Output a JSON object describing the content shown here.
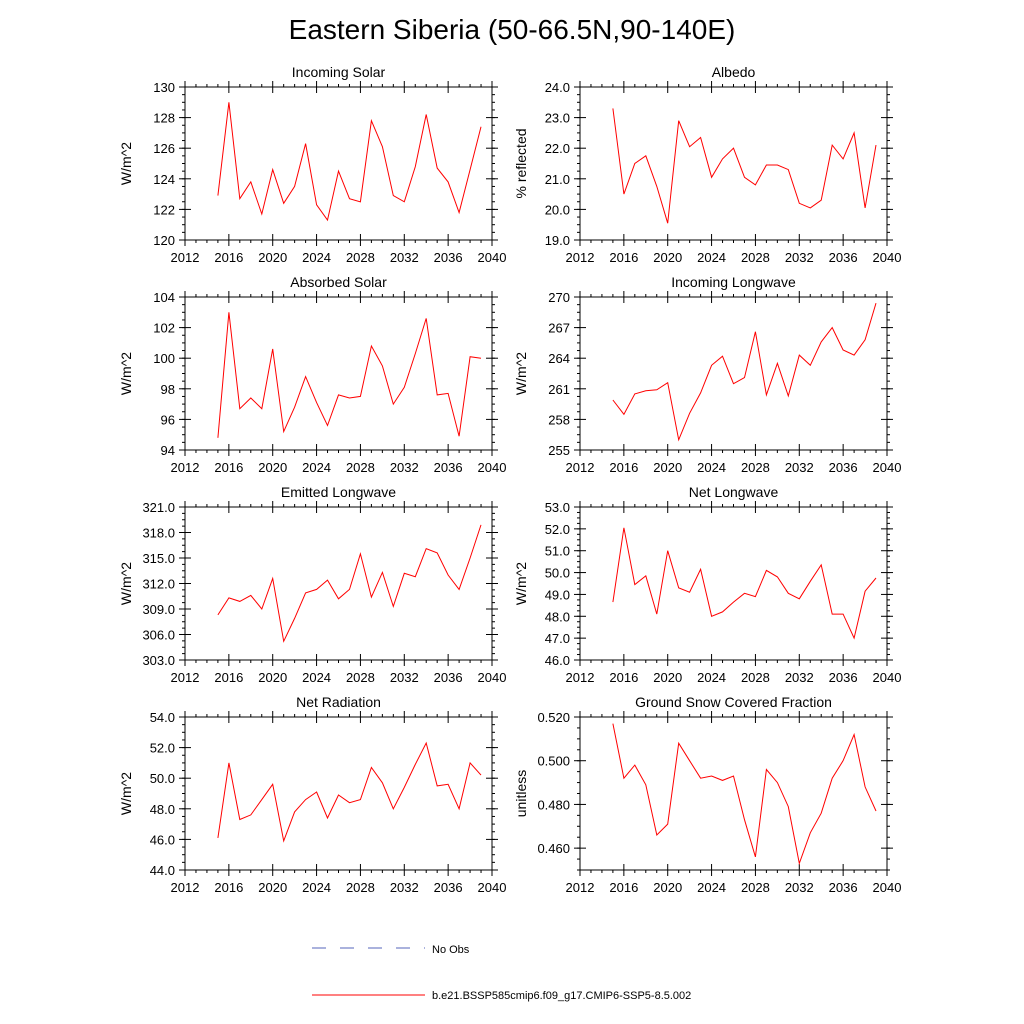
{
  "title": "Eastern Siberia (50-66.5N,90-140E)",
  "colors": {
    "model": "#ff0000",
    "obs": "#5566bb",
    "axis": "#000000"
  },
  "legend": {
    "obs_label": "No Obs",
    "model_label": "b.e21.BSSP585cmip6.f09_g17.CMIP6-SSP5-8.5.002"
  },
  "chart_data": [
    {
      "type": "line",
      "title": "Incoming Solar",
      "ylabel": "W/m^2",
      "xlim": [
        2012,
        2040
      ],
      "ylim": [
        120,
        130
      ],
      "xticks": [
        2012,
        2016,
        2020,
        2024,
        2028,
        2032,
        2036,
        2040
      ],
      "yticks": [
        120,
        122,
        124,
        126,
        128,
        130
      ],
      "ytick_labels": [
        "120",
        "122",
        "124",
        "126",
        "128",
        "130"
      ],
      "x": [
        2015,
        2016,
        2017,
        2018,
        2019,
        2020,
        2021,
        2022,
        2023,
        2024,
        2025,
        2026,
        2027,
        2028,
        2029,
        2030,
        2031,
        2032,
        2033,
        2034,
        2035,
        2036,
        2037,
        2038,
        2039
      ],
      "series": [
        {
          "values": [
            122.9,
            129.0,
            122.7,
            123.8,
            121.7,
            124.6,
            122.4,
            123.5,
            126.3,
            122.3,
            121.3,
            124.5,
            122.7,
            122.5,
            127.8,
            126.1,
            122.9,
            122.5,
            124.8,
            128.2,
            124.7,
            123.8,
            121.8,
            124.6,
            127.4
          ]
        }
      ]
    },
    {
      "type": "line",
      "title": "Albedo",
      "ylabel": "% reflected",
      "xlim": [
        2012,
        2040
      ],
      "ylim": [
        19,
        24
      ],
      "xticks": [
        2012,
        2016,
        2020,
        2024,
        2028,
        2032,
        2036,
        2040
      ],
      "yticks": [
        19,
        20,
        21,
        22,
        23,
        24
      ],
      "ytick_labels": [
        "19.0",
        "20.0",
        "21.0",
        "22.0",
        "23.0",
        "24.0"
      ],
      "x": [
        2015,
        2016,
        2017,
        2018,
        2019,
        2020,
        2021,
        2022,
        2023,
        2024,
        2025,
        2026,
        2027,
        2028,
        2029,
        2030,
        2031,
        2032,
        2033,
        2034,
        2035,
        2036,
        2037,
        2038,
        2039
      ],
      "series": [
        {
          "values": [
            23.3,
            20.5,
            21.5,
            21.75,
            20.75,
            19.55,
            22.9,
            22.05,
            22.35,
            21.05,
            21.65,
            22.0,
            21.05,
            20.8,
            21.45,
            21.45,
            21.3,
            20.2,
            20.05,
            20.3,
            22.1,
            21.65,
            22.5,
            20.05,
            22.1
          ]
        }
      ]
    },
    {
      "type": "line",
      "title": "Absorbed Solar",
      "ylabel": "W/m^2",
      "xlim": [
        2012,
        2040
      ],
      "ylim": [
        94,
        104
      ],
      "xticks": [
        2012,
        2016,
        2020,
        2024,
        2028,
        2032,
        2036,
        2040
      ],
      "yticks": [
        94,
        96,
        98,
        100,
        102,
        104
      ],
      "ytick_labels": [
        "94",
        "96",
        "98",
        "100",
        "102",
        "104"
      ],
      "x": [
        2015,
        2016,
        2017,
        2018,
        2019,
        2020,
        2021,
        2022,
        2023,
        2024,
        2025,
        2026,
        2027,
        2028,
        2029,
        2030,
        2031,
        2032,
        2033,
        2034,
        2035,
        2036,
        2037,
        2038,
        2039
      ],
      "series": [
        {
          "values": [
            94.8,
            103.0,
            96.7,
            97.4,
            96.7,
            100.6,
            95.2,
            96.8,
            98.8,
            97.1,
            95.6,
            97.6,
            97.4,
            97.5,
            100.8,
            99.5,
            97.0,
            98.1,
            100.3,
            102.6,
            97.6,
            97.7,
            94.9,
            100.1,
            100.0
          ]
        }
      ]
    },
    {
      "type": "line",
      "title": "Incoming Longwave",
      "ylabel": "W/m^2",
      "xlim": [
        2012,
        2040
      ],
      "ylim": [
        255,
        270
      ],
      "xticks": [
        2012,
        2016,
        2020,
        2024,
        2028,
        2032,
        2036,
        2040
      ],
      "yticks": [
        255,
        258,
        261,
        264,
        267,
        270
      ],
      "ytick_labels": [
        "255",
        "258",
        "261",
        "264",
        "267",
        "270"
      ],
      "x": [
        2015,
        2016,
        2017,
        2018,
        2019,
        2020,
        2021,
        2022,
        2023,
        2024,
        2025,
        2026,
        2027,
        2028,
        2029,
        2030,
        2031,
        2032,
        2033,
        2034,
        2035,
        2036,
        2037,
        2038,
        2039
      ],
      "series": [
        {
          "values": [
            259.9,
            258.5,
            260.5,
            260.8,
            260.9,
            261.6,
            256.0,
            258.6,
            260.6,
            263.3,
            264.2,
            261.5,
            262.1,
            266.6,
            260.4,
            263.5,
            260.3,
            264.3,
            263.3,
            265.6,
            267.0,
            264.8,
            264.3,
            265.8,
            269.4
          ]
        }
      ]
    },
    {
      "type": "line",
      "title": "Emitted Longwave",
      "ylabel": "W/m^2",
      "xlim": [
        2012,
        2040
      ],
      "ylim": [
        303,
        321
      ],
      "xticks": [
        2012,
        2016,
        2020,
        2024,
        2028,
        2032,
        2036,
        2040
      ],
      "yticks": [
        303,
        306,
        309,
        312,
        315,
        318,
        321
      ],
      "ytick_labels": [
        "303.0",
        "306.0",
        "309.0",
        "312.0",
        "315.0",
        "318.0",
        "321.0"
      ],
      "x": [
        2015,
        2016,
        2017,
        2018,
        2019,
        2020,
        2021,
        2022,
        2023,
        2024,
        2025,
        2026,
        2027,
        2028,
        2029,
        2030,
        2031,
        2032,
        2033,
        2034,
        2035,
        2036,
        2037,
        2038,
        2039
      ],
      "series": [
        {
          "values": [
            308.3,
            310.3,
            309.9,
            310.6,
            309.0,
            312.6,
            305.2,
            307.9,
            310.9,
            311.3,
            312.4,
            310.2,
            311.3,
            315.5,
            310.4,
            313.3,
            309.3,
            313.2,
            312.8,
            316.1,
            315.6,
            313.0,
            311.3,
            315.0,
            318.9
          ]
        }
      ]
    },
    {
      "type": "line",
      "title": "Net Longwave",
      "ylabel": "W/m^2",
      "xlim": [
        2012,
        2040
      ],
      "ylim": [
        46,
        53
      ],
      "xticks": [
        2012,
        2016,
        2020,
        2024,
        2028,
        2032,
        2036,
        2040
      ],
      "yticks": [
        46,
        47,
        48,
        49,
        50,
        51,
        52,
        53
      ],
      "ytick_labels": [
        "46.0",
        "47.0",
        "48.0",
        "49.0",
        "50.0",
        "51.0",
        "52.0",
        "53.0"
      ],
      "x": [
        2015,
        2016,
        2017,
        2018,
        2019,
        2020,
        2021,
        2022,
        2023,
        2024,
        2025,
        2026,
        2027,
        2028,
        2029,
        2030,
        2031,
        2032,
        2033,
        2034,
        2035,
        2036,
        2037,
        2038,
        2039
      ],
      "series": [
        {
          "values": [
            48.65,
            52.05,
            49.45,
            49.85,
            48.1,
            51.0,
            49.3,
            49.1,
            50.15,
            48.0,
            48.2,
            48.65,
            49.05,
            48.9,
            50.1,
            49.8,
            49.05,
            48.8,
            49.6,
            50.35,
            48.1,
            48.1,
            47.0,
            49.15,
            49.75
          ]
        }
      ]
    },
    {
      "type": "line",
      "title": "Net Radiation",
      "ylabel": "W/m^2",
      "xlim": [
        2012,
        2040
      ],
      "ylim": [
        44,
        54
      ],
      "xticks": [
        2012,
        2016,
        2020,
        2024,
        2028,
        2032,
        2036,
        2040
      ],
      "yticks": [
        44,
        46,
        48,
        50,
        52,
        54
      ],
      "ytick_labels": [
        "44.0",
        "46.0",
        "48.0",
        "50.0",
        "52.0",
        "54.0"
      ],
      "x": [
        2015,
        2016,
        2017,
        2018,
        2019,
        2020,
        2021,
        2022,
        2023,
        2024,
        2025,
        2026,
        2027,
        2028,
        2029,
        2030,
        2031,
        2032,
        2033,
        2034,
        2035,
        2036,
        2037,
        2038,
        2039
      ],
      "series": [
        {
          "values": [
            46.1,
            51.0,
            47.3,
            47.6,
            48.6,
            49.6,
            45.9,
            47.8,
            48.6,
            49.1,
            47.4,
            48.9,
            48.4,
            48.6,
            50.7,
            49.7,
            48.0,
            49.4,
            50.9,
            52.3,
            49.5,
            49.6,
            48.0,
            51.0,
            50.2
          ]
        }
      ]
    },
    {
      "type": "line",
      "title": "Ground Snow Covered Fraction",
      "ylabel": "unitless",
      "xlim": [
        2012,
        2040
      ],
      "ylim": [
        0.45,
        0.52
      ],
      "xticks": [
        2012,
        2016,
        2020,
        2024,
        2028,
        2032,
        2036,
        2040
      ],
      "yticks": [
        0.46,
        0.48,
        0.5,
        0.52
      ],
      "ytick_labels": [
        "0.460",
        "0.480",
        "0.500",
        "0.520"
      ],
      "x": [
        2015,
        2016,
        2017,
        2018,
        2019,
        2020,
        2021,
        2022,
        2023,
        2024,
        2025,
        2026,
        2027,
        2028,
        2029,
        2030,
        2031,
        2032,
        2033,
        2034,
        2035,
        2036,
        2037,
        2038,
        2039
      ],
      "series": [
        {
          "values": [
            0.517,
            0.492,
            0.498,
            0.489,
            0.466,
            0.471,
            0.508,
            0.5,
            0.492,
            0.493,
            0.491,
            0.493,
            0.473,
            0.456,
            0.496,
            0.49,
            0.479,
            0.453,
            0.467,
            0.476,
            0.492,
            0.5,
            0.512,
            0.488,
            0.477
          ]
        }
      ]
    }
  ]
}
